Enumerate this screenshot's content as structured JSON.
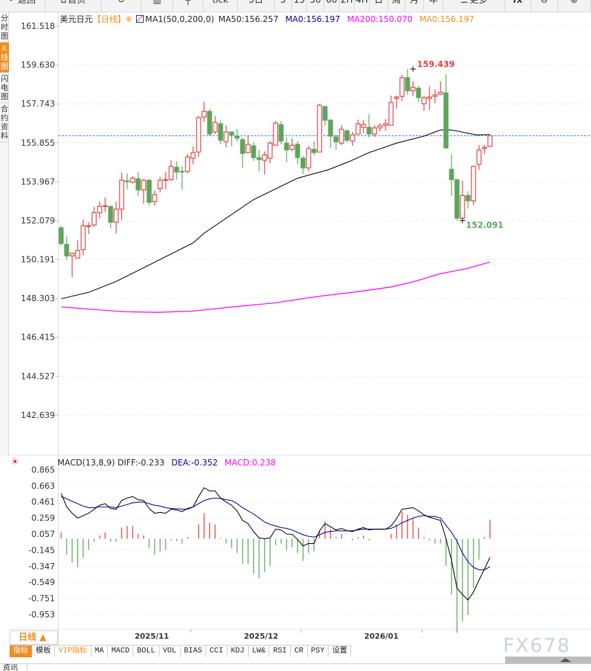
{
  "toolbar": [
    {
      "id": "back",
      "label": "返回",
      "icon": "back-arrow-icon",
      "w": 66
    },
    {
      "id": "home",
      "label": "首页",
      "icon": "home-icon",
      "w": 82
    },
    {
      "id": "refresh",
      "label": "",
      "icon": "refresh-icon",
      "w": 58
    },
    {
      "id": "indicator",
      "label": "",
      "icon": "bar-chart-icon",
      "w": 46
    },
    {
      "id": "candle",
      "label": "",
      "icon": "candlestick-icon",
      "w": 44
    },
    {
      "id": "tick",
      "label": "tick",
      "w": 50
    },
    {
      "id": "5d",
      "label": "5日",
      "w": 54
    },
    {
      "id": "5",
      "label": "5",
      "w": 25
    },
    {
      "id": "15",
      "label": "15",
      "w": 22
    },
    {
      "id": "30",
      "label": "30",
      "w": 25
    },
    {
      "id": "60",
      "label": "60",
      "w": 22
    },
    {
      "id": "2h",
      "label": "2H",
      "w": 22
    },
    {
      "id": "4h",
      "label": "4H",
      "w": 22
    },
    {
      "id": "day",
      "label": "日",
      "w": 27
    },
    {
      "id": "week",
      "label": "周",
      "w": 25
    },
    {
      "id": "month",
      "label": "月",
      "w": 27
    },
    {
      "id": "year",
      "label": "年",
      "w": 28
    },
    {
      "id": "more",
      "label": "更多",
      "icon": "menu-icon",
      "w": 90
    },
    {
      "id": "fx",
      "label": "fx",
      "w": 38
    },
    {
      "id": "zoomout",
      "label": "",
      "icon": "zoom-out-icon",
      "w": 39
    },
    {
      "id": "zoomin",
      "label": "",
      "icon": "zoom-in-icon",
      "w": 48
    }
  ],
  "left_tabs": [
    {
      "label": "分时图",
      "active": false
    },
    {
      "label": "K线图",
      "active": true
    },
    {
      "label": "闪电图",
      "active": false
    },
    {
      "label": "合约资料",
      "active": false
    }
  ],
  "legend": {
    "symbol": "美元日元",
    "period": "【日线】",
    "ma_name": "MA1(50,0,200,0)",
    "ma50": "MA50:156.257",
    "ma0_a": "MA0:156.197",
    "ma200": "MA200:150.070",
    "ma0_b": "MA0:156.197"
  },
  "macd_legend": {
    "name": "MACD(13,8,9) DIFF:-0.233",
    "dea": "DEA:-0.352",
    "macd": "MACD:0.238"
  },
  "period_button": "日线 ▲",
  "dates": [
    "2025/11",
    "2025/12",
    "2026/01"
  ],
  "bottom_tabs": [
    "指标",
    "模板",
    "VIP指标",
    "MA",
    "MACD",
    "BOLL",
    "VOL",
    "BIAS",
    "CCI",
    "KDJ",
    "LW&",
    "RSI",
    "CR",
    "PSY",
    "设置"
  ],
  "watermark": "FX678",
  "news_tab": "资讯",
  "colors": {
    "up": "#dd4040",
    "down": "#5ea55a",
    "ma50": "#000000",
    "ma200": "#ff00ff",
    "last_line": "#1e7fe0",
    "accent": "#f28c1e",
    "dea": "#000099"
  },
  "chart_data": [
    {
      "type": "candlestick",
      "title": "美元日元",
      "yticks": [
        161.518,
        159.63,
        157.743,
        155.855,
        153.967,
        152.079,
        150.191,
        148.303,
        146.415,
        144.527,
        142.639
      ],
      "ylim": [
        141.8,
        161.518
      ],
      "xticks": [
        {
          "label": "2025/11",
          "index": 13
        },
        {
          "label": "2025/12",
          "index": 33
        },
        {
          "label": "2026/01",
          "index": 55
        }
      ],
      "last_price": 156.197,
      "annotations": [
        {
          "label": "159.439",
          "index": 64,
          "value": 159.439,
          "type": "high"
        },
        {
          "label": "152.091",
          "index": 73,
          "value": 152.091,
          "type": "low"
        }
      ],
      "ohlc": [
        [
          151.73,
          151.83,
          150.87,
          150.97
        ],
        [
          150.93,
          151.33,
          150.16,
          150.37
        ],
        [
          150.37,
          150.53,
          149.33,
          150.5
        ],
        [
          150.26,
          151.13,
          150.26,
          150.63
        ],
        [
          150.67,
          152.14,
          150.4,
          151.83
        ],
        [
          151.8,
          152.0,
          151.43,
          151.83
        ],
        [
          151.87,
          152.74,
          151.77,
          152.47
        ],
        [
          152.47,
          153.0,
          152.2,
          152.77
        ],
        [
          152.77,
          153.2,
          152.5,
          152.8
        ],
        [
          152.77,
          152.8,
          151.7,
          152.0
        ],
        [
          152.0,
          153.0,
          151.47,
          152.64
        ],
        [
          152.64,
          154.41,
          152.1,
          154.04
        ],
        [
          154.01,
          154.37,
          153.6,
          153.97
        ],
        [
          153.94,
          154.24,
          153.87,
          154.14
        ],
        [
          154.11,
          154.44,
          153.27,
          153.57
        ],
        [
          153.57,
          154.11,
          152.9,
          154.04
        ],
        [
          154.04,
          154.11,
          152.8,
          152.97
        ],
        [
          153.0,
          153.54,
          152.8,
          153.34
        ],
        [
          153.64,
          154.21,
          153.44,
          154.04
        ],
        [
          154.04,
          154.44,
          153.6,
          154.07
        ],
        [
          154.07,
          155.01,
          154.01,
          154.71
        ],
        [
          154.67,
          154.97,
          154.07,
          154.44
        ],
        [
          154.47,
          154.71,
          153.57,
          154.44
        ],
        [
          154.47,
          155.31,
          154.37,
          155.17
        ],
        [
          155.11,
          155.68,
          154.81,
          155.38
        ],
        [
          155.41,
          157.15,
          155.17,
          157.08
        ],
        [
          157.11,
          157.85,
          156.88,
          157.38
        ],
        [
          157.38,
          157.51,
          156.18,
          156.28
        ],
        [
          156.38,
          157.15,
          156.28,
          156.84
        ],
        [
          156.78,
          156.95,
          155.78,
          155.98
        ],
        [
          155.91,
          156.71,
          155.64,
          156.38
        ],
        [
          156.38,
          156.41,
          155.68,
          156.24
        ],
        [
          156.18,
          156.54,
          155.91,
          156.08
        ],
        [
          156.01,
          156.11,
          154.64,
          155.34
        ],
        [
          155.38,
          156.18,
          155.38,
          155.78
        ],
        [
          155.71,
          155.88,
          154.97,
          155.14
        ],
        [
          155.14,
          155.51,
          154.47,
          155.04
        ],
        [
          155.01,
          155.44,
          154.31,
          155.27
        ],
        [
          155.11,
          155.94,
          154.87,
          155.84
        ],
        [
          155.74,
          156.91,
          155.74,
          156.81
        ],
        [
          156.74,
          156.91,
          155.78,
          155.94
        ],
        [
          155.84,
          156.11,
          154.91,
          155.51
        ],
        [
          155.54,
          156.08,
          155.44,
          155.74
        ],
        [
          155.78,
          155.94,
          154.81,
          155.14
        ],
        [
          155.11,
          155.21,
          154.34,
          154.64
        ],
        [
          154.64,
          155.71,
          154.47,
          155.58
        ],
        [
          155.54,
          155.94,
          155.24,
          155.38
        ],
        [
          155.41,
          157.75,
          155.41,
          157.68
        ],
        [
          157.61,
          157.68,
          156.68,
          156.95
        ],
        [
          156.95,
          157.01,
          155.61,
          156.18
        ],
        [
          156.14,
          156.24,
          155.51,
          155.91
        ],
        [
          155.84,
          156.71,
          155.74,
          156.51
        ],
        [
          156.44,
          156.51,
          155.88,
          155.98
        ],
        [
          155.94,
          156.38,
          155.71,
          156.24
        ],
        [
          156.28,
          156.98,
          156.28,
          156.78
        ],
        [
          156.61,
          156.98,
          156.31,
          156.74
        ],
        [
          156.61,
          157.25,
          156.11,
          156.28
        ],
        [
          156.28,
          156.71,
          156.14,
          156.58
        ],
        [
          156.58,
          156.81,
          156.41,
          156.68
        ],
        [
          156.71,
          157.01,
          156.44,
          156.78
        ],
        [
          156.71,
          158.15,
          156.71,
          157.81
        ],
        [
          158.01,
          158.15,
          157.51,
          158.08
        ],
        [
          158.11,
          159.15,
          157.88,
          159.02
        ],
        [
          159.02,
          159.439,
          158.18,
          158.38
        ],
        [
          158.38,
          158.85,
          158.11,
          158.55
        ],
        [
          158.51,
          158.62,
          157.81,
          158.05
        ],
        [
          157.75,
          158.15,
          157.41,
          158.05
        ],
        [
          158.01,
          158.58,
          157.45,
          158.08
        ],
        [
          158.11,
          158.45,
          157.78,
          158.18
        ],
        [
          158.21,
          158.85,
          158.18,
          158.31
        ],
        [
          158.28,
          159.18,
          155.58,
          155.61
        ],
        [
          154.57,
          155.31,
          153.27,
          154.07
        ],
        [
          154.07,
          154.07,
          152.091,
          152.2
        ],
        [
          152.2,
          154.01,
          152.2,
          153.3
        ],
        [
          153.3,
          153.5,
          152.67,
          153.04
        ],
        [
          153.04,
          154.77,
          152.84,
          154.71
        ],
        [
          154.81,
          155.74,
          154.54,
          155.51
        ],
        [
          155.58,
          155.74,
          155.31,
          155.64
        ],
        [
          155.68,
          156.21,
          155.68,
          156.197
        ]
      ],
      "ma50": [
        [
          0,
          148.29
        ],
        [
          5,
          148.6
        ],
        [
          10,
          149.13
        ],
        [
          15.5,
          149.86
        ],
        [
          24,
          151.0
        ],
        [
          26,
          151.47
        ],
        [
          35,
          153.1
        ],
        [
          43,
          154.14
        ],
        [
          48.5,
          154.54
        ],
        [
          52.6,
          154.97
        ],
        [
          56,
          155.38
        ],
        [
          61,
          155.84
        ],
        [
          66,
          156.18
        ],
        [
          69,
          156.48
        ],
        [
          71,
          156.48
        ],
        [
          75.5,
          156.24
        ],
        [
          78,
          156.257
        ]
      ],
      "ma200": [
        [
          0,
          147.89
        ],
        [
          11.4,
          147.66
        ],
        [
          17.6,
          147.63
        ],
        [
          23.9,
          147.69
        ],
        [
          32.6,
          147.93
        ],
        [
          38.9,
          148.09
        ],
        [
          46.4,
          148.39
        ],
        [
          53.9,
          148.63
        ],
        [
          60,
          148.86
        ],
        [
          63.9,
          149.1
        ],
        [
          68.9,
          149.5
        ],
        [
          73.9,
          149.76
        ],
        [
          78,
          150.07
        ]
      ]
    },
    {
      "type": "macd",
      "title": "MACD(13,8,9)",
      "yticks": [
        0.865,
        0.663,
        0.461,
        0.259,
        0.057,
        -0.145,
        -0.347,
        -0.549,
        -0.751,
        -0.953
      ],
      "diff": [
        0.57,
        0.4,
        0.32,
        0.26,
        0.29,
        0.32,
        0.37,
        0.42,
        0.44,
        0.38,
        0.37,
        0.48,
        0.51,
        0.53,
        0.49,
        0.48,
        0.38,
        0.32,
        0.33,
        0.32,
        0.37,
        0.36,
        0.34,
        0.38,
        0.4,
        0.53,
        0.64,
        0.6,
        0.6,
        0.51,
        0.46,
        0.42,
        0.35,
        0.23,
        0.19,
        0.09,
        0.01,
        0.0,
        0.01,
        0.12,
        0.11,
        0.06,
        0.055,
        -0.01,
        -0.09,
        -0.06,
        -0.06,
        0.1,
        0.19,
        0.15,
        0.11,
        0.13,
        0.1,
        0.09,
        0.12,
        0.14,
        0.11,
        0.12,
        0.12,
        0.12,
        0.16,
        0.25,
        0.37,
        0.38,
        0.39,
        0.35,
        0.3,
        0.27,
        0.25,
        0.23,
        0.0,
        -0.27,
        -0.62,
        -0.7,
        -0.77,
        -0.67,
        -0.52,
        -0.38,
        -0.233
      ],
      "dea": [
        0.53,
        0.5,
        0.47,
        0.44,
        0.41,
        0.39,
        0.39,
        0.4,
        0.4,
        0.4,
        0.39,
        0.41,
        0.43,
        0.45,
        0.46,
        0.46,
        0.44,
        0.42,
        0.41,
        0.39,
        0.38,
        0.376,
        0.37,
        0.37,
        0.4,
        0.44,
        0.48,
        0.5,
        0.51,
        0.505,
        0.49,
        0.48,
        0.44,
        0.39,
        0.35,
        0.31,
        0.26,
        0.21,
        0.18,
        0.16,
        0.14,
        0.13,
        0.11,
        0.08,
        0.05,
        0.03,
        0.02,
        0.05,
        0.08,
        0.09,
        0.1,
        0.1,
        0.1,
        0.1,
        0.11,
        0.12,
        0.12,
        0.12,
        0.12,
        0.12,
        0.13,
        0.16,
        0.2,
        0.23,
        0.26,
        0.28,
        0.29,
        0.28,
        0.28,
        0.26,
        0.17,
        0.08,
        -0.03,
        -0.18,
        -0.29,
        -0.36,
        -0.39,
        -0.39,
        -0.352
      ],
      "hist": [
        0.08,
        -0.2,
        -0.3,
        -0.36,
        -0.24,
        -0.14,
        -0.04,
        0.04,
        0.08,
        -0.04,
        -0.04,
        0.14,
        0.16,
        0.16,
        0.06,
        0.04,
        -0.12,
        -0.2,
        -0.16,
        -0.14,
        -0.02,
        -0.03,
        -0.06,
        0.02,
        0.0,
        0.18,
        0.32,
        0.2,
        0.18,
        0.01,
        -0.06,
        -0.12,
        -0.18,
        -0.32,
        -0.32,
        -0.44,
        -0.5,
        -0.42,
        -0.34,
        -0.08,
        -0.06,
        -0.14,
        -0.11,
        -0.18,
        -0.28,
        -0.18,
        -0.16,
        0.1,
        0.22,
        0.12,
        0.02,
        0.06,
        0.0,
        -0.02,
        0.02,
        0.04,
        -0.02,
        0.0,
        0.0,
        0.0,
        0.06,
        0.18,
        0.34,
        0.3,
        0.26,
        0.14,
        0.02,
        -0.02,
        -0.06,
        -0.06,
        -0.34,
        -0.7,
        -1.18,
        -1.04,
        -0.96,
        -0.62,
        -0.26,
        0.02,
        0.238
      ]
    }
  ]
}
